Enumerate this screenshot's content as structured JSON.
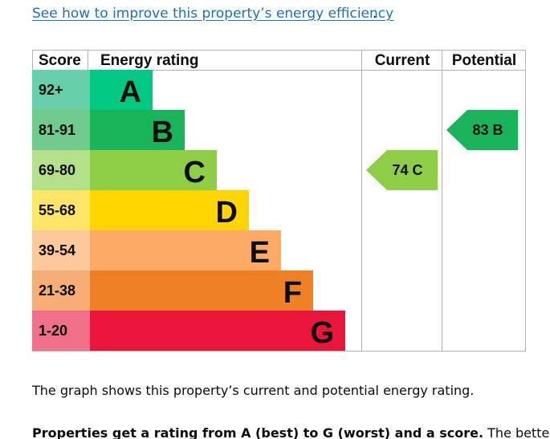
{
  "link": {
    "text": "See how to improve this property’s energy efficiency",
    "trailing": "."
  },
  "chart_data": {
    "type": "bar",
    "headers": {
      "score": "Score",
      "rating": "Energy rating",
      "current": "Current",
      "potential": "Potential"
    },
    "bands": [
      {
        "score": "92+",
        "letter": "A",
        "color": "#00c781",
        "score_bg": "#64cfa8"
      },
      {
        "score": "81-91",
        "letter": "B",
        "color": "#19b459",
        "score_bg": "#6fca8e"
      },
      {
        "score": "69-80",
        "letter": "C",
        "color": "#8dce46",
        "score_bg": "#b5e08a"
      },
      {
        "score": "55-68",
        "letter": "D",
        "color": "#ffd500",
        "score_bg": "#ffe566"
      },
      {
        "score": "39-54",
        "letter": "E",
        "color": "#fcaa65",
        "score_bg": "#fdc89a"
      },
      {
        "score": "21-38",
        "letter": "F",
        "color": "#ef8023",
        "score_bg": "#f4ad74"
      },
      {
        "score": "1-20",
        "letter": "G",
        "color": "#e9153b",
        "score_bg": "#f07087"
      }
    ],
    "current": {
      "value": 74,
      "band": "C",
      "label": "74  C",
      "color": "#8dce46"
    },
    "potential": {
      "value": 83,
      "band": "B",
      "label": "83  B",
      "color": "#19b459"
    }
  },
  "paragraphs": {
    "p1": "The graph shows this property’s current and potential energy rating.",
    "p2_bold": "Properties get a rating from A (best) to G (worst) and a score.",
    "p2_rest": " The better"
  }
}
